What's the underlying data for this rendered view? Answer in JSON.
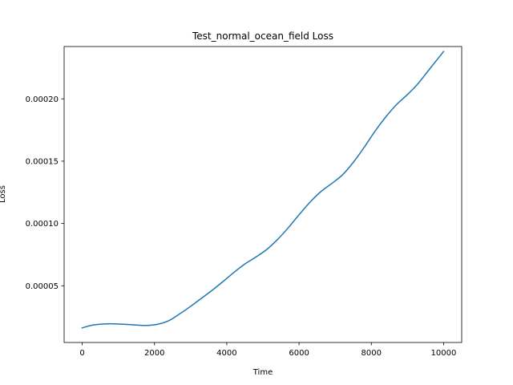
{
  "chart_data": {
    "type": "line",
    "title": "Test_normal_ocean_field Loss",
    "xlabel": "Time",
    "ylabel": "Loss",
    "xlim": [
      -500,
      10500
    ],
    "ylim": [
      4.5e-06,
      0.000242
    ],
    "grid": false,
    "legend": "none",
    "x_ticks": [
      {
        "value": 0,
        "label": "0"
      },
      {
        "value": 2000,
        "label": "2000"
      },
      {
        "value": 4000,
        "label": "4000"
      },
      {
        "value": 6000,
        "label": "6000"
      },
      {
        "value": 8000,
        "label": "8000"
      },
      {
        "value": 10000,
        "label": "10000"
      }
    ],
    "y_ticks": [
      {
        "value": 5e-05,
        "label": "0.00005"
      },
      {
        "value": 0.0001,
        "label": "0.00010"
      },
      {
        "value": 0.00015,
        "label": "0.00015"
      },
      {
        "value": 0.0002,
        "label": "0.00020"
      }
    ],
    "series": [
      {
        "color": "#1f77b4",
        "x": [
          0,
          300,
          700,
          1100,
          1500,
          1800,
          2100,
          2400,
          2700,
          3000,
          3300,
          3600,
          3900,
          4200,
          4500,
          4800,
          5100,
          5400,
          5700,
          6000,
          6300,
          6600,
          6900,
          7200,
          7500,
          7800,
          8100,
          8400,
          8700,
          9000,
          9300,
          9600,
          10000
        ],
        "y": [
          1.62e-05,
          1.85e-05,
          1.95e-05,
          1.92e-05,
          1.85e-05,
          1.82e-05,
          1.92e-05,
          2.21e-05,
          2.75e-05,
          3.35e-05,
          4e-05,
          4.65e-05,
          5.35e-05,
          6.08e-05,
          6.75e-05,
          7.3e-05,
          7.9e-05,
          8.7e-05,
          9.65e-05,
          0.000107,
          0.000117,
          0.0001255,
          0.000132,
          0.000139,
          0.000149,
          0.000161,
          0.000174,
          0.0001855,
          0.0001955,
          0.0002035,
          0.0002125,
          0.0002235,
          0.000238
        ]
      }
    ]
  }
}
